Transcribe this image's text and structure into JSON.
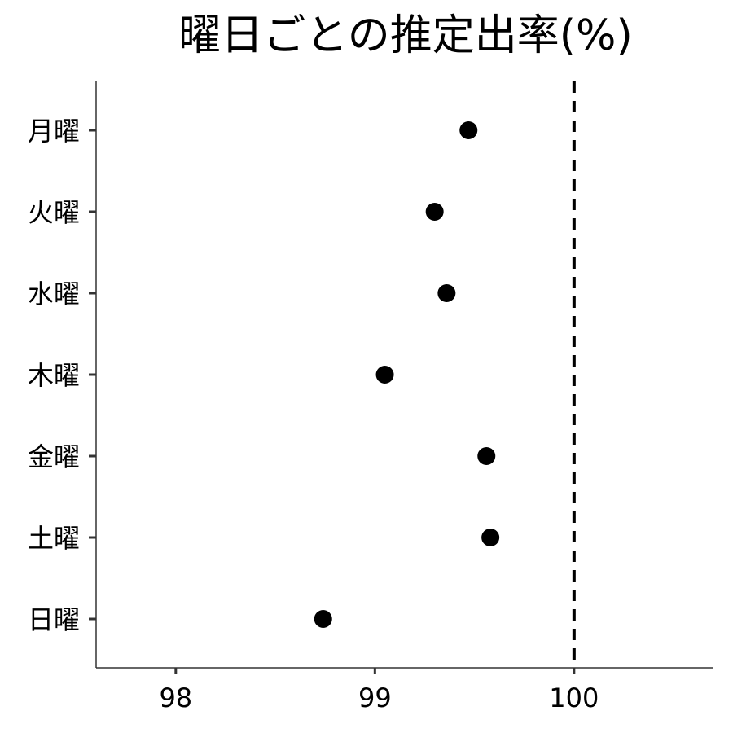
{
  "chart_data": {
    "type": "scatter",
    "title": "曜日ごとの推定出率(%)",
    "xlabel": "",
    "ylabel": "",
    "xlim": [
      97.6,
      100.7
    ],
    "xticks": [
      "98",
      "99",
      "100"
    ],
    "categories": [
      "月曜",
      "火曜",
      "水曜",
      "木曜",
      "金曜",
      "土曜",
      "日曜"
    ],
    "values": [
      99.47,
      99.3,
      99.36,
      99.05,
      99.56,
      99.58,
      98.74
    ],
    "reference_line": {
      "x": 100,
      "style": "dashed"
    },
    "grid": false,
    "legend": "none",
    "colors": {
      "point": "#000000",
      "axis": "#333333",
      "reference": "#000000"
    }
  }
}
